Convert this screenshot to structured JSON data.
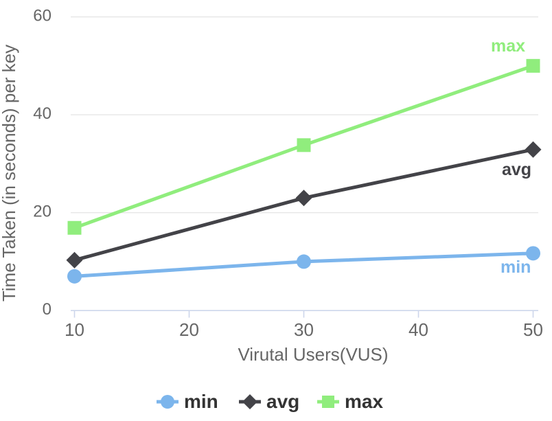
{
  "chart_data": {
    "type": "line",
    "title": "",
    "xlabel": "Virutal Users(VUS)",
    "ylabel": "Time Taken (in seconds) per key",
    "x": [
      10,
      30,
      50
    ],
    "xticks": [
      "10",
      "20",
      "30",
      "40",
      "50"
    ],
    "yticks": [
      "0",
      "20",
      "40",
      "60"
    ],
    "xlim": [
      9.7,
      50.5
    ],
    "ylim": [
      0,
      60
    ],
    "grid": "horizontal-only",
    "legend_position": "bottom-center",
    "series": [
      {
        "name": "min",
        "color": "#7cb5ec",
        "marker": "circle",
        "values": [
          7,
          10,
          11.7
        ]
      },
      {
        "name": "avg",
        "color": "#434348",
        "marker": "diamond",
        "values": [
          10.3,
          23,
          32.9
        ]
      },
      {
        "name": "max",
        "color": "#90ed7d",
        "marker": "square",
        "values": [
          16.9,
          33.8,
          50
        ]
      }
    ],
    "series_end_labels": [
      "min",
      "avg",
      "max"
    ]
  },
  "legend": {
    "items": [
      {
        "label": "min"
      },
      {
        "label": "avg"
      },
      {
        "label": "max"
      }
    ]
  },
  "colors": {
    "background": "#ffffff",
    "gridline": "#e6e6e6",
    "axis_line": "#ccd6eb",
    "tick_label": "#666666",
    "axis_title": "#666666",
    "legend_text": "#333333",
    "series_min": "#7cb5ec",
    "series_avg": "#434348",
    "series_max": "#90ed7d"
  }
}
